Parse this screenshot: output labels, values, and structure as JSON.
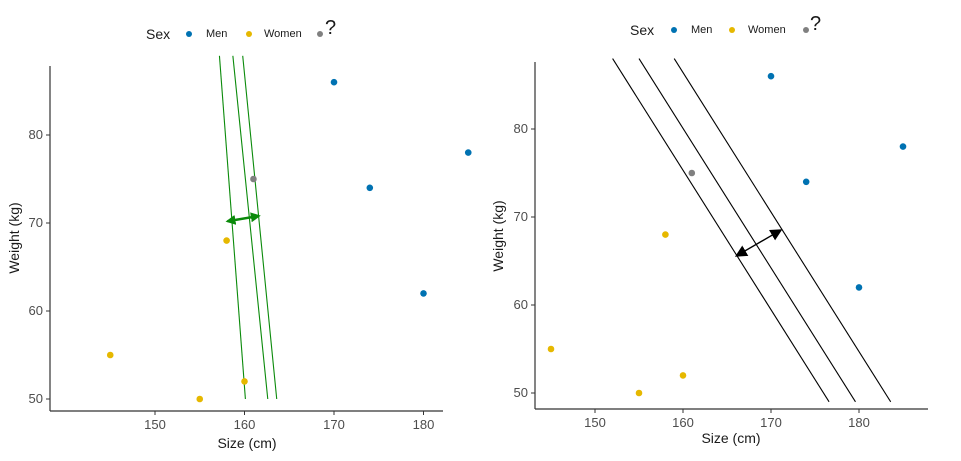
{
  "chart_data": [
    {
      "type": "scatter",
      "xlabel": "Size (cm)",
      "ylabel": "Weight (kg)",
      "xlim": [
        143,
        187
      ],
      "ylim": [
        48,
        88
      ],
      "xticks": [
        150,
        160,
        170,
        180
      ],
      "yticks": [
        50,
        60,
        70,
        80
      ],
      "legend": {
        "title": "Sex",
        "position": "top",
        "items": [
          {
            "label": "Men",
            "color": "#0072B2"
          },
          {
            "label": "Women",
            "color": "#E6B800"
          },
          {
            "label": "?",
            "color": "#808080"
          }
        ]
      },
      "points": [
        {
          "x": 170,
          "y": 86,
          "group": "Men"
        },
        {
          "x": 185,
          "y": 78,
          "group": "Men"
        },
        {
          "x": 174,
          "y": 74,
          "group": "Men"
        },
        {
          "x": 180,
          "y": 62,
          "group": "Men"
        },
        {
          "x": 145,
          "y": 55,
          "group": "Women"
        },
        {
          "x": 155,
          "y": 50,
          "group": "Women"
        },
        {
          "x": 158,
          "y": 68,
          "group": "Women"
        },
        {
          "x": 160,
          "y": 52,
          "group": "Women"
        },
        {
          "x": 161,
          "y": 75,
          "group": "?"
        }
      ],
      "lines_color": "#0a8a0a",
      "separator_lines": [
        {
          "x1": 157.2,
          "y1": 89,
          "x2": 160.1,
          "y2": 50
        },
        {
          "x1": 158.7,
          "y1": 89,
          "x2": 162.6,
          "y2": 50
        },
        {
          "x1": 159.8,
          "y1": 89,
          "x2": 163.6,
          "y2": 50
        }
      ],
      "margin_arrow": {
        "x1": 158.1,
        "y1": 70.2,
        "x2": 161.6,
        "y2": 70.8
      }
    },
    {
      "type": "scatter",
      "xlabel": "Size (cm)",
      "ylabel": "Weight (kg)",
      "xlim": [
        143,
        187
      ],
      "ylim": [
        48,
        88
      ],
      "xticks": [
        150,
        160,
        170,
        180
      ],
      "yticks": [
        50,
        60,
        70,
        80
      ],
      "legend": {
        "title": "Sex",
        "position": "top",
        "items": [
          {
            "label": "Men",
            "color": "#0072B2"
          },
          {
            "label": "Women",
            "color": "#E6B800"
          },
          {
            "label": "?",
            "color": "#808080"
          }
        ]
      },
      "points": [
        {
          "x": 170,
          "y": 86,
          "group": "Men"
        },
        {
          "x": 185,
          "y": 78,
          "group": "Men"
        },
        {
          "x": 174,
          "y": 74,
          "group": "Men"
        },
        {
          "x": 180,
          "y": 62,
          "group": "Men"
        },
        {
          "x": 145,
          "y": 55,
          "group": "Women"
        },
        {
          "x": 155,
          "y": 50,
          "group": "Women"
        },
        {
          "x": 158,
          "y": 68,
          "group": "Women"
        },
        {
          "x": 160,
          "y": 52,
          "group": "Women"
        },
        {
          "x": 161,
          "y": 75,
          "group": "?"
        }
      ],
      "lines_color": "#000000",
      "separator_lines": [
        {
          "x1": 152,
          "y1": 88,
          "x2": 176.6,
          "y2": 49
        },
        {
          "x1": 155,
          "y1": 88,
          "x2": 179.6,
          "y2": 49
        },
        {
          "x1": 159,
          "y1": 88,
          "x2": 183.6,
          "y2": 49
        }
      ],
      "margin_arrow": {
        "x1": 166.1,
        "y1": 65.6,
        "x2": 171.1,
        "y2": 68.5
      }
    }
  ]
}
